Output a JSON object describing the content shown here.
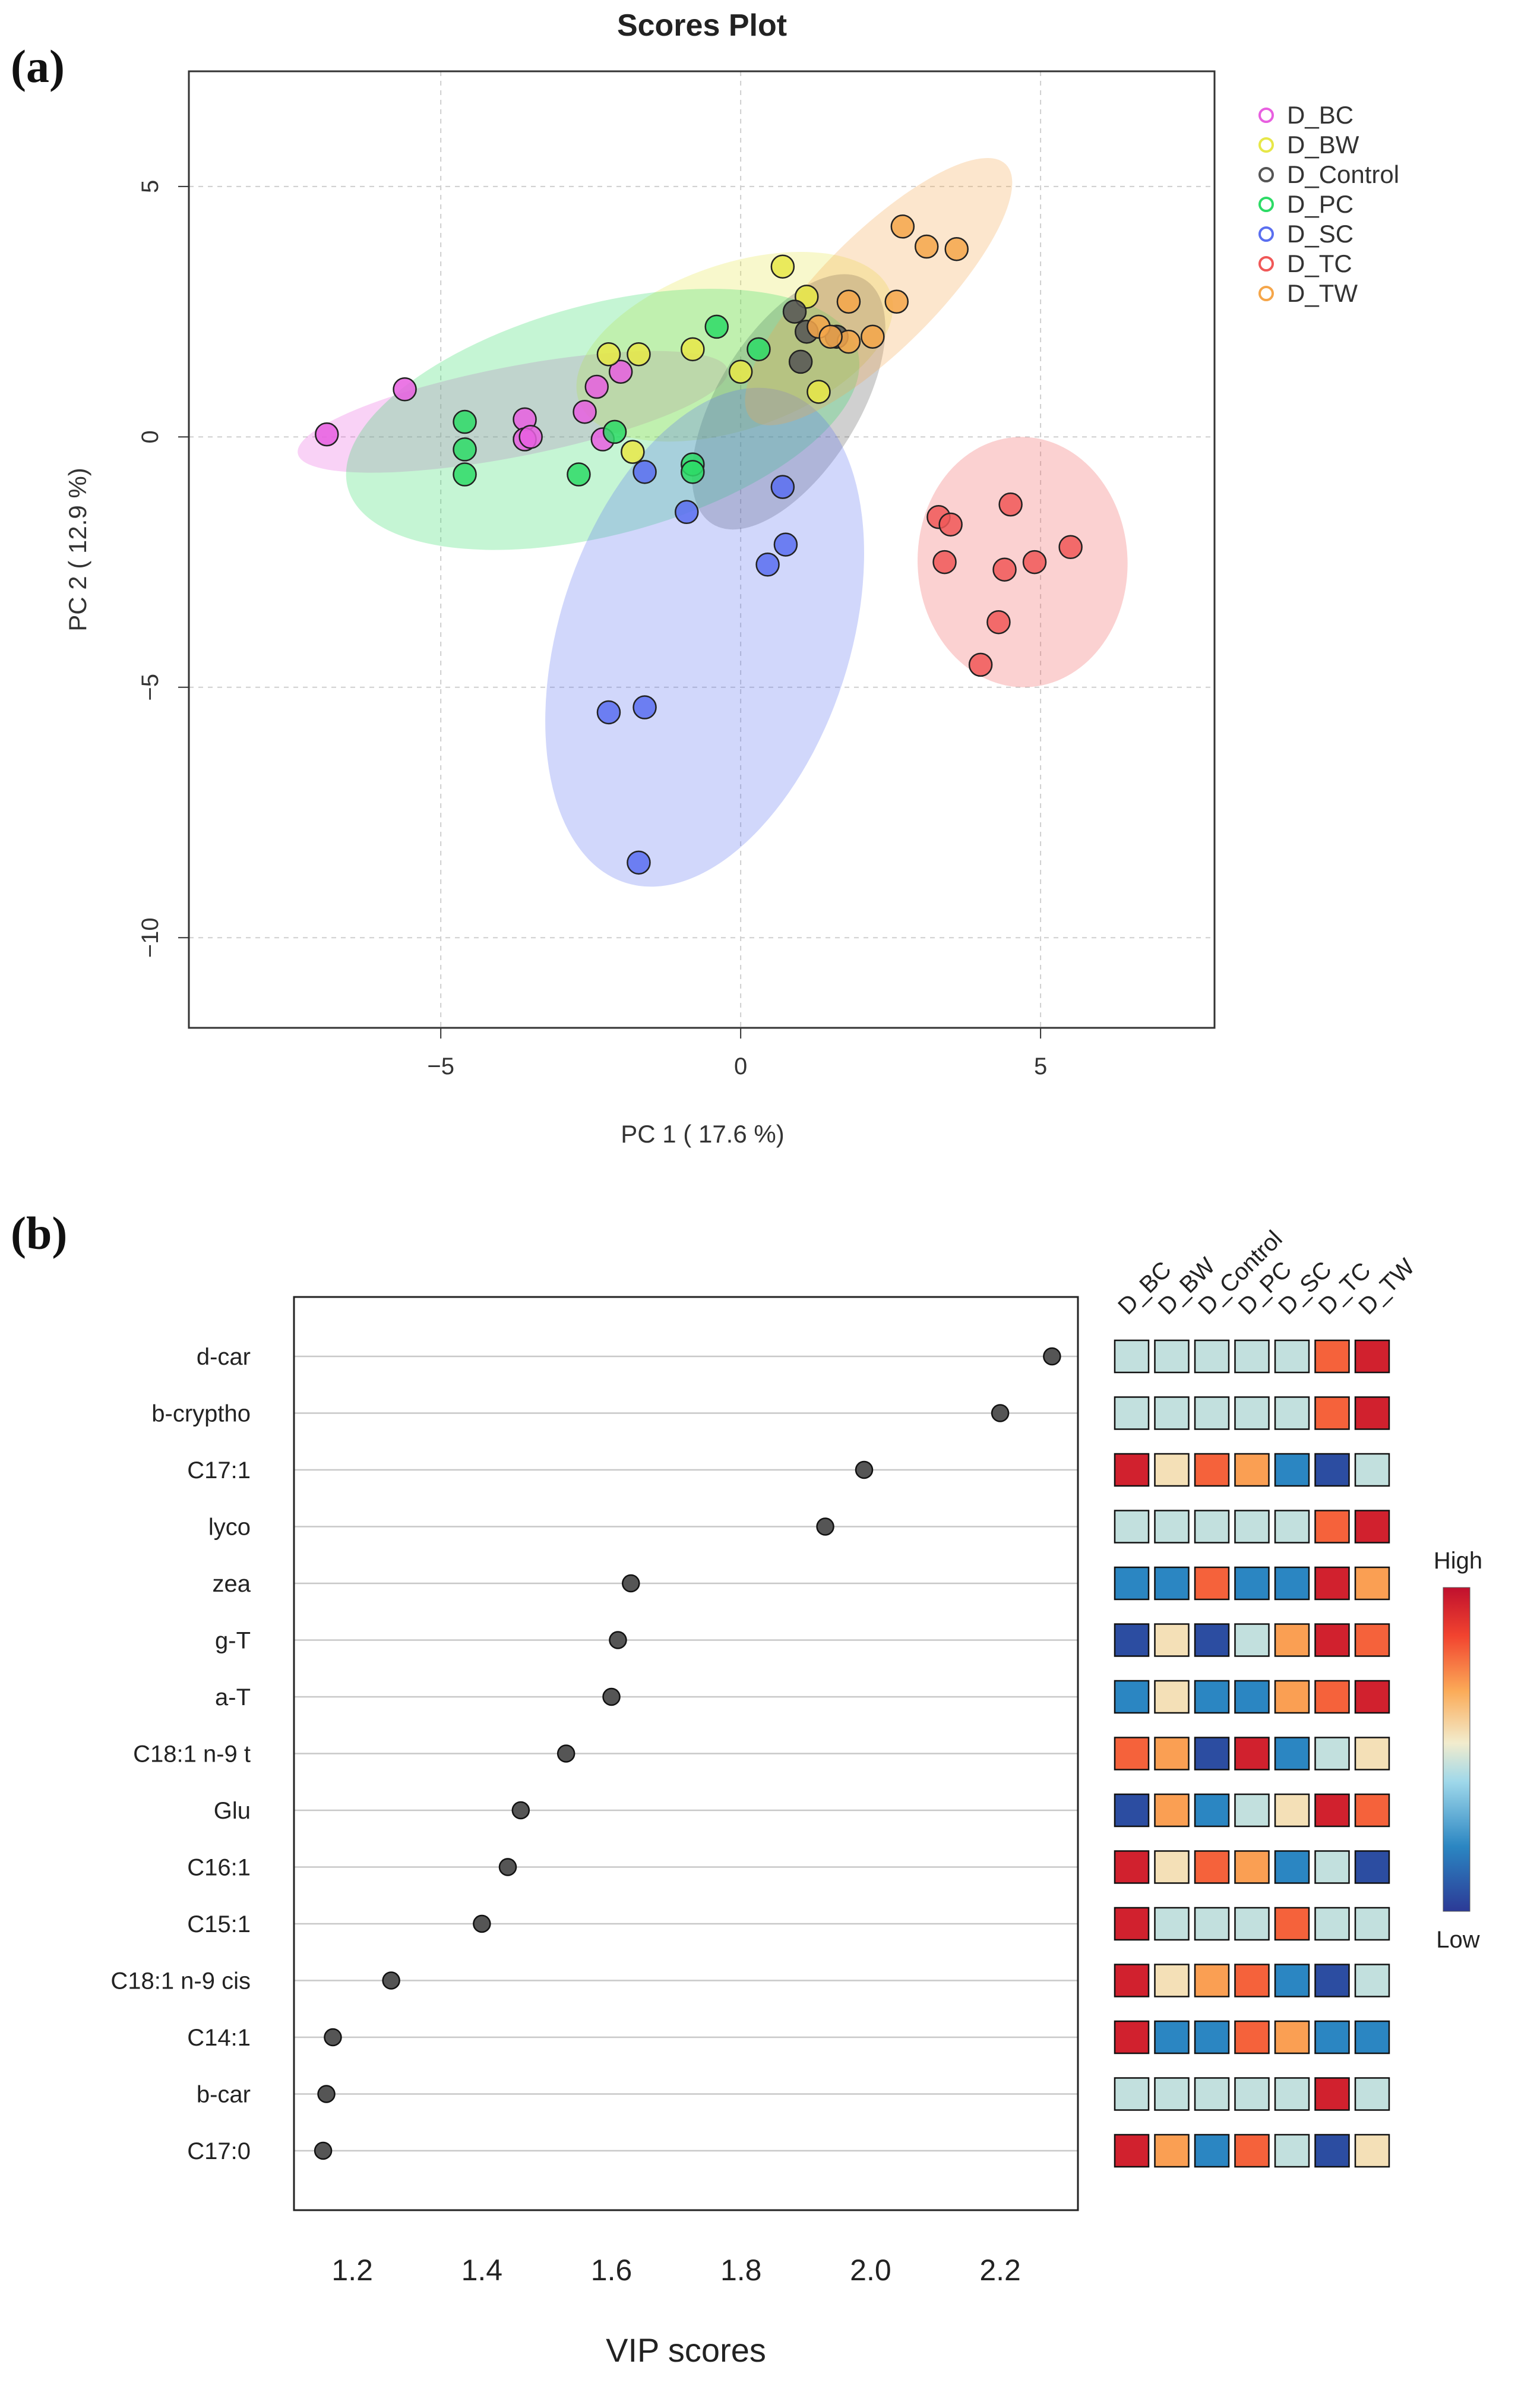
{
  "panel_a_label": "(a)",
  "panel_b_label": "(b)",
  "chart_data": [
    {
      "type": "scatter",
      "title": "Scores Plot",
      "xlabel": "PC 1 ( 17.6 %)",
      "ylabel": "PC 2 ( 12.9 %)",
      "xlim": [
        -9.2,
        7.9
      ],
      "ylim": [
        -11.8,
        7.3
      ],
      "xticks": [
        -5,
        0,
        5
      ],
      "xtick_labels": [
        "−5",
        "0",
        "5"
      ],
      "yticks": [
        5,
        0,
        -5,
        -10
      ],
      "ytick_labels": [
        "5",
        "0",
        "−5",
        "−10"
      ],
      "grid": true,
      "legend_position": "top-right",
      "series": [
        {
          "name": "D_BC",
          "color": "#e85fe0",
          "points": [
            [
              -6.9,
              0.05
            ],
            [
              -5.6,
              0.95
            ],
            [
              -3.6,
              0.35
            ],
            [
              -3.6,
              -0.05
            ],
            [
              -3.5,
              0.0
            ],
            [
              -2.6,
              0.5
            ],
            [
              -2.4,
              1.0
            ],
            [
              -2.3,
              -0.05
            ],
            [
              -2.0,
              1.3
            ]
          ],
          "ellipse": {
            "cx": -3.8,
            "cy": 0.5,
            "rx": 7.3,
            "ry": 0.9,
            "angle": 11
          }
        },
        {
          "name": "D_BW",
          "color": "#e7e748",
          "points": [
            [
              -2.2,
              1.65
            ],
            [
              -1.7,
              1.65
            ],
            [
              -0.8,
              1.75
            ],
            [
              0.0,
              1.3
            ],
            [
              0.7,
              3.4
            ],
            [
              1.1,
              2.8
            ],
            [
              1.3,
              0.9
            ],
            [
              -1.8,
              -0.3
            ]
          ],
          "ellipse": {
            "cx": -0.1,
            "cy": 1.8,
            "rx": 5.5,
            "ry": 1.65,
            "angle": 19
          }
        },
        {
          "name": "D_Control",
          "color": "#555555",
          "points": [
            [
              1.0,
              1.5
            ],
            [
              1.1,
              2.1
            ],
            [
              1.6,
              2.0
            ],
            [
              0.9,
              2.5
            ]
          ],
          "ellipse": {
            "cx": 0.8,
            "cy": 0.7,
            "rx": 4.8,
            "ry": 1.4,
            "angle": 58
          }
        },
        {
          "name": "D_PC",
          "color": "#2ddb66",
          "points": [
            [
              -4.6,
              0.3
            ],
            [
              -4.6,
              -0.25
            ],
            [
              -4.6,
              -0.75
            ],
            [
              -2.7,
              -0.75
            ],
            [
              -2.1,
              0.1
            ],
            [
              -0.8,
              -0.55
            ],
            [
              -0.8,
              -0.7
            ],
            [
              -0.4,
              2.2
            ],
            [
              0.3,
              1.75
            ]
          ],
          "ellipse": {
            "cx": -2.3,
            "cy": 0.35,
            "rx": 8.8,
            "ry": 2.3,
            "angle": 15
          }
        },
        {
          "name": "D_SC",
          "color": "#5a6ff0",
          "points": [
            [
              -1.6,
              -0.7
            ],
            [
              -0.9,
              -1.5
            ],
            [
              0.45,
              -2.55
            ],
            [
              0.7,
              -1.0
            ],
            [
              0.75,
              -2.15
            ],
            [
              -2.2,
              -5.5
            ],
            [
              -1.6,
              -5.4
            ],
            [
              -1.7,
              -8.5
            ]
          ],
          "ellipse": {
            "cx": -0.6,
            "cy": -4.0,
            "rx": 8.6,
            "ry": 2.9,
            "angle": 72
          }
        },
        {
          "name": "D_TC",
          "color": "#f05858",
          "points": [
            [
              3.3,
              -1.6
            ],
            [
              3.5,
              -1.75
            ],
            [
              3.4,
              -2.5
            ],
            [
              4.5,
              -1.35
            ],
            [
              4.4,
              -2.65
            ],
            [
              4.9,
              -2.5
            ],
            [
              5.5,
              -2.2
            ],
            [
              4.3,
              -3.7
            ],
            [
              4.0,
              -4.55
            ]
          ],
          "ellipse": {
            "cx": 4.7,
            "cy": -2.5,
            "rx": 3.5,
            "ry": 2.5,
            "angle": 2
          }
        },
        {
          "name": "D_TW",
          "color": "#f5a64a",
          "points": [
            [
              2.7,
              4.2
            ],
            [
              3.1,
              3.8
            ],
            [
              3.6,
              3.75
            ],
            [
              1.8,
              2.7
            ],
            [
              2.6,
              2.7
            ],
            [
              2.2,
              2.0
            ],
            [
              1.8,
              1.9
            ],
            [
              1.3,
              2.2
            ],
            [
              1.5,
              2.0
            ]
          ],
          "ellipse": {
            "cx": 2.3,
            "cy": 2.9,
            "rx": 6.0,
            "ry": 1.15,
            "angle": 45
          }
        }
      ]
    },
    {
      "type": "scatter",
      "subtype": "vip_dot_plot_with_heatmap",
      "xlabel": "VIP scores",
      "ylabel": "",
      "xlim": [
        1.11,
        2.32
      ],
      "xticks": [
        1.2,
        1.4,
        1.6,
        1.8,
        2.0,
        2.2
      ],
      "xtick_labels": [
        "1.2",
        "1.4",
        "1.6",
        "1.8",
        "2.0",
        "2.2"
      ],
      "grid": true,
      "categories": [
        "d-car",
        "b-cryptho",
        "C17:1",
        "lyco",
        "zea",
        "g-T",
        "a-T",
        "C18:1 n-9 t",
        "Glu",
        "C16:1",
        "C15:1",
        "C18:1 n-9 cis",
        "C14:1",
        "b-car",
        "C17:0"
      ],
      "values": [
        2.28,
        2.2,
        1.99,
        1.93,
        1.63,
        1.61,
        1.6,
        1.53,
        1.46,
        1.44,
        1.4,
        1.26,
        1.17,
        1.16,
        1.155
      ],
      "heatmap": {
        "groups": [
          "D_BC",
          "D_BW",
          "D_Control",
          "D_PC",
          "D_SC",
          "D_TC",
          "D_TW"
        ],
        "scale_high_label": "High",
        "scale_low_label": "Low",
        "levels": [
          [
            0.45,
            0.45,
            0.45,
            0.45,
            0.45,
            0.8,
            0.95
          ],
          [
            0.45,
            0.45,
            0.45,
            0.45,
            0.45,
            0.8,
            0.95
          ],
          [
            0.95,
            0.55,
            0.8,
            0.7,
            0.2,
            0.05,
            0.45
          ],
          [
            0.45,
            0.45,
            0.45,
            0.45,
            0.45,
            0.8,
            0.95
          ],
          [
            0.2,
            0.2,
            0.8,
            0.2,
            0.2,
            0.95,
            0.7
          ],
          [
            0.05,
            0.55,
            0.05,
            0.45,
            0.7,
            0.95,
            0.8
          ],
          [
            0.2,
            0.55,
            0.2,
            0.2,
            0.7,
            0.8,
            0.95
          ],
          [
            0.8,
            0.7,
            0.05,
            0.95,
            0.2,
            0.45,
            0.55
          ],
          [
            0.05,
            0.7,
            0.2,
            0.45,
            0.55,
            0.95,
            0.8
          ],
          [
            0.95,
            0.55,
            0.8,
            0.7,
            0.2,
            0.45,
            0.05
          ],
          [
            0.95,
            0.45,
            0.45,
            0.45,
            0.8,
            0.45,
            0.45
          ],
          [
            0.95,
            0.55,
            0.7,
            0.8,
            0.2,
            0.05,
            0.45
          ],
          [
            0.95,
            0.2,
            0.2,
            0.8,
            0.7,
            0.2,
            0.2
          ],
          [
            0.45,
            0.45,
            0.45,
            0.45,
            0.45,
            0.95,
            0.45
          ],
          [
            0.95,
            0.7,
            0.2,
            0.8,
            0.45,
            0.05,
            0.55
          ]
        ]
      }
    }
  ]
}
